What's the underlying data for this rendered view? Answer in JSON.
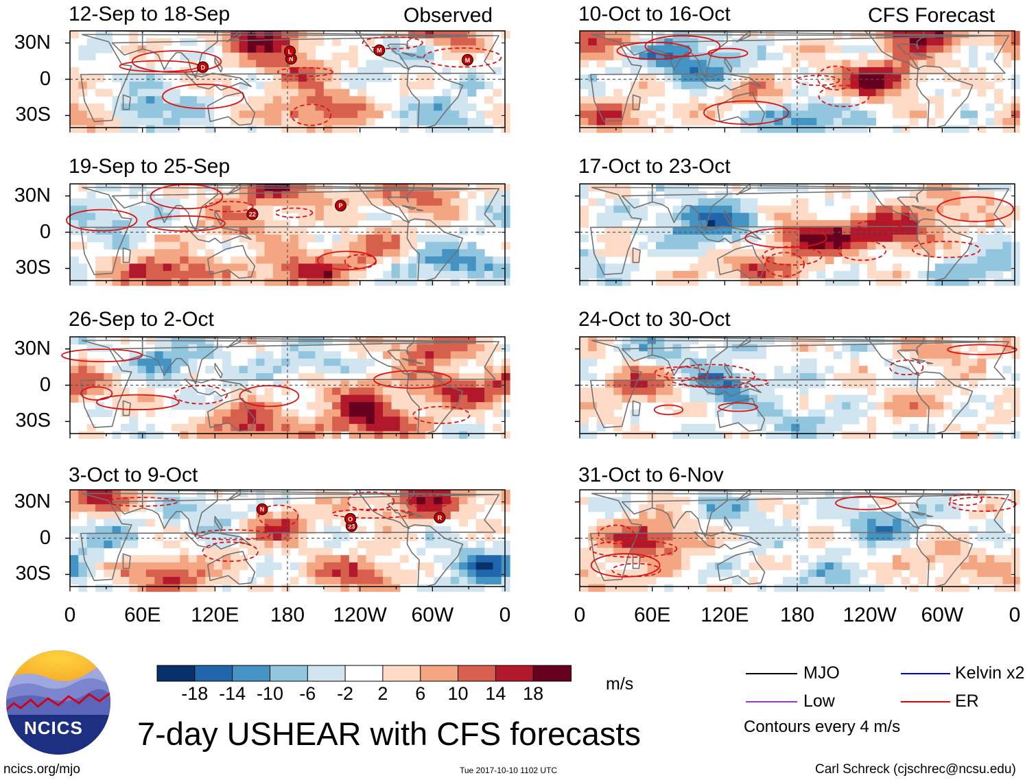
{
  "title": "7-day USHEAR with CFS forecasts",
  "header_left": "Observed",
  "header_right": "CFS Forecast",
  "logo_text": "NCICS",
  "footer_left": "ncics.org/mjo",
  "footer_center": "Tue 2017-10-10 1102 UTC",
  "footer_right": "Carl Schreck (cjschrec@ncsu.edu)",
  "units": "m/s",
  "contour_note": "Contours every 4 m/s",
  "chart_data": {
    "type": "heatmap",
    "variable": "7-day USHEAR anomaly",
    "panels": [
      {
        "id": "obs1",
        "group": "Observed",
        "period": "12-Sep to 18-Sep",
        "storms": [
          "D",
          "N",
          "M",
          "M",
          "L"
        ],
        "features": [
          {
            "lon": 60,
            "lat": -25,
            "v": -14
          },
          {
            "lon": 205,
            "lat": -25,
            "v": 16
          },
          {
            "lon": 160,
            "lat": 35,
            "v": 18
          },
          {
            "lon": 10,
            "lat": -30,
            "v": 16
          },
          {
            "lon": 300,
            "lat": 40,
            "v": 18
          },
          {
            "lon": 270,
            "lat": 25,
            "v": -8
          },
          {
            "lon": 330,
            "lat": -30,
            "v": -14
          },
          {
            "lon": 185,
            "lat": 10,
            "v": 10
          }
        ]
      },
      {
        "id": "obs2",
        "group": "Observed",
        "period": "19-Sep to 25-Sep",
        "storms": [
          "22",
          "P"
        ],
        "features": [
          {
            "lon": 80,
            "lat": -33,
            "v": 18
          },
          {
            "lon": 190,
            "lat": -33,
            "v": 16
          },
          {
            "lon": 170,
            "lat": 35,
            "v": 16
          },
          {
            "lon": 310,
            "lat": -25,
            "v": -14
          },
          {
            "lon": 30,
            "lat": 10,
            "v": -8
          },
          {
            "lon": 140,
            "lat": 5,
            "v": 10
          },
          {
            "lon": 280,
            "lat": 30,
            "v": 12
          },
          {
            "lon": 250,
            "lat": -15,
            "v": 10
          }
        ]
      },
      {
        "id": "obs3",
        "group": "Observed",
        "period": "26-Sep to 2-Oct",
        "storms": [],
        "features": [
          {
            "lon": 150,
            "lat": -33,
            "v": 16
          },
          {
            "lon": 250,
            "lat": -30,
            "v": 18
          },
          {
            "lon": 320,
            "lat": -5,
            "v": 12
          },
          {
            "lon": 10,
            "lat": 0,
            "v": 10
          },
          {
            "lon": 80,
            "lat": 20,
            "v": -10
          },
          {
            "lon": 200,
            "lat": 15,
            "v": -8
          },
          {
            "lon": 230,
            "lat": -5,
            "v": 10
          },
          {
            "lon": 300,
            "lat": 30,
            "v": 14
          }
        ]
      },
      {
        "id": "obs4",
        "group": "Observed",
        "period": "3-Oct to 9-Oct",
        "storms": [
          "23",
          "R",
          "N",
          "O"
        ],
        "features": [
          {
            "lon": 80,
            "lat": -30,
            "v": 16
          },
          {
            "lon": 20,
            "lat": 35,
            "v": 14
          },
          {
            "lon": 240,
            "lat": -30,
            "v": 14
          },
          {
            "lon": 290,
            "lat": 30,
            "v": 16
          },
          {
            "lon": 170,
            "lat": 10,
            "v": 12
          },
          {
            "lon": 340,
            "lat": -25,
            "v": -14
          },
          {
            "lon": 120,
            "lat": 20,
            "v": -8
          },
          {
            "lon": 30,
            "lat": 0,
            "v": -6
          }
        ]
      },
      {
        "id": "fc1",
        "group": "CFS Forecast",
        "period": "10-Oct to 16-Oct",
        "features": [
          {
            "lon": 245,
            "lat": 0,
            "v": 18
          },
          {
            "lon": 285,
            "lat": 35,
            "v": 18
          },
          {
            "lon": 70,
            "lat": 25,
            "v": -10
          },
          {
            "lon": 100,
            "lat": 10,
            "v": -12
          },
          {
            "lon": 180,
            "lat": -30,
            "v": -16
          },
          {
            "lon": 150,
            "lat": -15,
            "v": 10
          },
          {
            "lon": 30,
            "lat": -30,
            "v": 12
          },
          {
            "lon": 20,
            "lat": 35,
            "v": 14
          }
        ]
      },
      {
        "id": "fc2",
        "group": "CFS Forecast",
        "period": "17-Oct to 23-Oct",
        "features": [
          {
            "lon": 190,
            "lat": -5,
            "v": 18
          },
          {
            "lon": 255,
            "lat": 0,
            "v": 18
          },
          {
            "lon": 95,
            "lat": 15,
            "v": -10
          },
          {
            "lon": 120,
            "lat": 0,
            "v": -12
          },
          {
            "lon": 140,
            "lat": -30,
            "v": 12
          },
          {
            "lon": 340,
            "lat": -30,
            "v": -10
          },
          {
            "lon": 300,
            "lat": 20,
            "v": 8
          }
        ]
      },
      {
        "id": "fc3",
        "group": "CFS Forecast",
        "period": "24-Oct to 30-Oct",
        "features": [
          {
            "lon": 55,
            "lat": 0,
            "v": 14
          },
          {
            "lon": 115,
            "lat": 0,
            "v": -14
          },
          {
            "lon": 80,
            "lat": 30,
            "v": -8
          },
          {
            "lon": 180,
            "lat": -30,
            "v": -8
          },
          {
            "lon": 270,
            "lat": -15,
            "v": 6
          },
          {
            "lon": 310,
            "lat": 30,
            "v": 8
          }
        ]
      },
      {
        "id": "fc4",
        "group": "CFS Forecast",
        "period": "31-Oct to 6-Nov",
        "features": [
          {
            "lon": 62,
            "lat": 0,
            "v": 18
          },
          {
            "lon": 250,
            "lat": 10,
            "v": -10
          },
          {
            "lon": 120,
            "lat": 20,
            "v": -6
          },
          {
            "lon": 300,
            "lat": -20,
            "v": 8
          },
          {
            "lon": 200,
            "lat": -35,
            "v": -6
          },
          {
            "lon": 20,
            "lat": -30,
            "v": 6
          }
        ]
      }
    ],
    "lat_ticks": [
      "30N",
      "0",
      "30S"
    ],
    "lon_ticks": [
      "0",
      "60E",
      "120E",
      "180",
      "120W",
      "60W",
      "0"
    ],
    "lat_range": [
      -40,
      40
    ],
    "lon_range": [
      0,
      360
    ],
    "colorbar": {
      "levels": [
        "-18",
        "-14",
        "-10",
        "-6",
        "-2",
        "2",
        "6",
        "10",
        "14",
        "18"
      ],
      "colors": [
        "#08306b",
        "#2166ac",
        "#4393c3",
        "#92c5de",
        "#d1e5f0",
        "#ffffff",
        "#fddbc7",
        "#f4a582",
        "#d6604d",
        "#b2182b",
        "#67001f"
      ],
      "units": "m/s"
    },
    "legend": [
      {
        "label": "MJO",
        "color": "#000000"
      },
      {
        "label": "Kelvin x2",
        "color": "#0000cc"
      },
      {
        "label": "Low",
        "color": "#9933cc"
      },
      {
        "label": "ER",
        "color": "#dd0000"
      }
    ]
  }
}
